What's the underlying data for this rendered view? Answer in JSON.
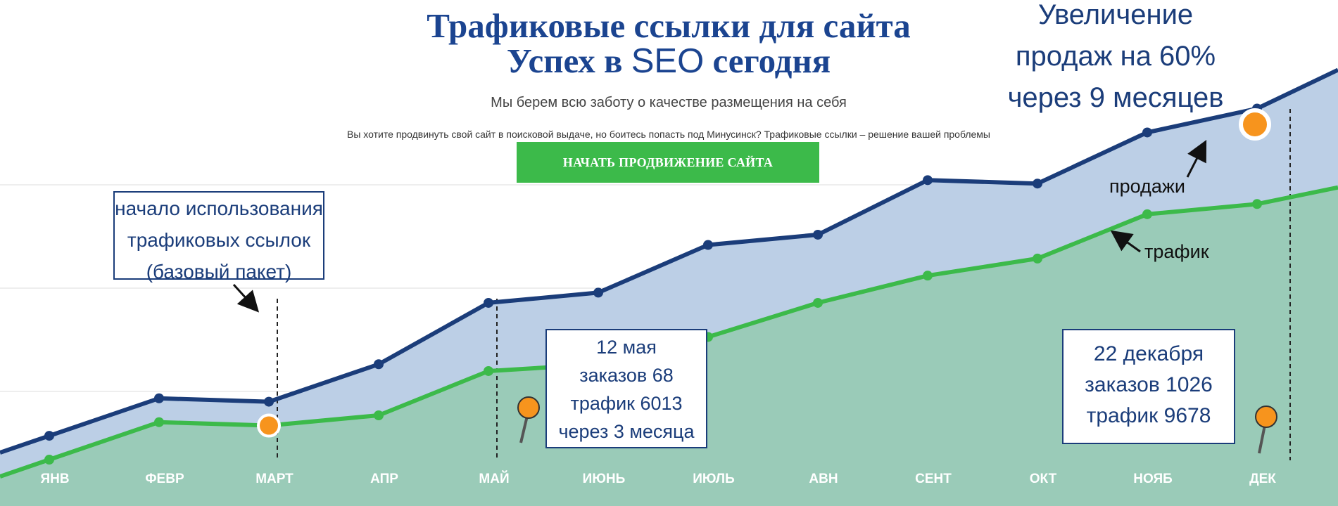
{
  "hero": {
    "title_line1": "Трафиковые ссылки для сайта",
    "title_line2_a": "Успех в ",
    "title_line2_seo": "SEO",
    "title_line2_b": " сегодня",
    "subtitle": "Мы берем всю заботу о качестве размещения на себя",
    "lead": "Вы хотите продвинуть свой сайт в поисковой выдаче, но боитесь попасть под Минусинск? Трафиковые ссылки – решение вашей проблемы",
    "cta_label": "НАЧАТЬ ПРОДВИЖЕНИЕ САЙТА"
  },
  "colors": {
    "title": "#1b4490",
    "cta": "#3cba4a",
    "sales_line": "#1b3d7a",
    "sales_area": "#bccfe6",
    "traffic_line": "#3cba4a",
    "traffic_area": "#9acbb8",
    "marker": "#f7941d"
  },
  "annotations": {
    "growth_line1": "Увеличение",
    "growth_line2": "продаж на 60%",
    "growth_line3": "через 9 месяцев",
    "start_line1": "начало использования",
    "start_line2": "трафиковых ссылок",
    "start_line3": "(базовый пакет)",
    "may_line1": "12 мая",
    "may_line2": "заказов 68",
    "may_line3": "трафик 6013",
    "may_line4": "через 3 месяца",
    "dec_line1": "22 декабря",
    "dec_line2": "заказов 1026",
    "dec_line3": "трафик 9678",
    "sales_label": "продажи",
    "traffic_label": "трафик"
  },
  "chart_data": {
    "type": "area",
    "categories": [
      "ЯНВ",
      "ФЕВР",
      "МАРТ",
      "АПР",
      "МАЙ",
      "ИЮНЬ",
      "ИЮЛЬ",
      "АВН",
      "СЕНТ",
      "ОКТ",
      "НОЯБ",
      "ДЕК"
    ],
    "series": [
      {
        "name": "продажи",
        "values": [
          1.4,
          2.5,
          2.4,
          3.5,
          5.3,
          5.6,
          7.0,
          7.3,
          8.9,
          8.8,
          10.3,
          11.0
        ]
      },
      {
        "name": "трафик",
        "values": [
          0.7,
          1.8,
          1.7,
          2.0,
          3.3,
          3.5,
          4.3,
          5.3,
          6.1,
          6.6,
          7.9,
          8.2
        ]
      }
    ],
    "grid": true,
    "legend": "none"
  }
}
